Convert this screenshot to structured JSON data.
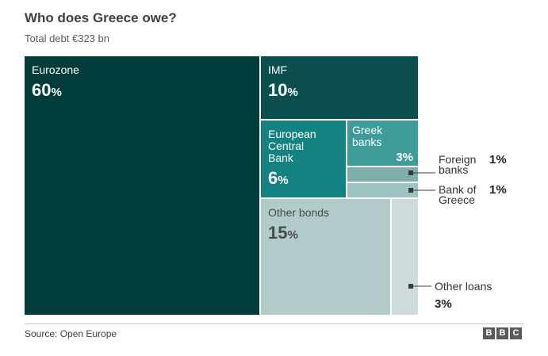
{
  "title": "Who does Greece owe?",
  "subtitle": "Total debt €323 bn",
  "source": "Source: Open Europe",
  "logo": [
    "B",
    "B",
    "C"
  ],
  "chart_data": {
    "type": "treemap",
    "title": "Who does Greece owe?",
    "subtitle": "Total debt €323 bn",
    "unit": "%",
    "items": [
      {
        "id": "eurozone",
        "lines": [
          "Eurozone"
        ],
        "label": "Eurozone",
        "value": 60,
        "color": "#003d3a"
      },
      {
        "id": "imf",
        "lines": [
          "IMF"
        ],
        "label": "IMF",
        "value": 10,
        "color": "#0b4f4f"
      },
      {
        "id": "ecb",
        "lines": [
          "European",
          "Central",
          "Bank"
        ],
        "label": "European Central Bank",
        "value": 6,
        "color": "#138281"
      },
      {
        "id": "greek_banks",
        "lines": [
          "Greek",
          "banks"
        ],
        "label": "Greek banks",
        "value": 3,
        "color": "#3d9c9a"
      },
      {
        "id": "foreign_banks",
        "lines": [
          "Foreign",
          "banks"
        ],
        "label": "Foreign banks",
        "value": 1,
        "color": "#7eaeac"
      },
      {
        "id": "bank_of_greece",
        "lines": [
          "Bank of",
          "Greece"
        ],
        "label": "Bank of Greece",
        "value": 1,
        "color": "#9dc4c3"
      },
      {
        "id": "other_bonds",
        "lines": [
          "Other bonds"
        ],
        "label": "Other bonds",
        "value": 15,
        "color": "#b0cbca"
      },
      {
        "id": "other_loans",
        "lines": [
          "Other loans"
        ],
        "label": "Other loans",
        "value": 3,
        "color": "#cddcdb"
      }
    ]
  }
}
